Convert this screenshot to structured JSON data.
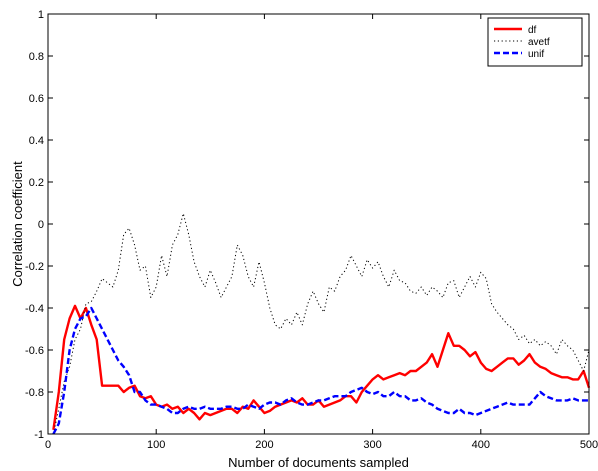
{
  "chart_data": {
    "type": "line",
    "xlabel": "Number of documents sampled",
    "ylabel": "Correlation coefficient",
    "xlim": [
      0,
      500
    ],
    "ylim": [
      -1,
      1
    ],
    "xticks": [
      0,
      100,
      200,
      300,
      400,
      500
    ],
    "yticks": [
      -1,
      -0.8,
      -0.6,
      -0.4,
      -0.2,
      0,
      0.2,
      0.4,
      0.6,
      0.8,
      1
    ],
    "grid": false,
    "legend_position": "top-right",
    "series": [
      {
        "name": "df",
        "color": "#ff0000",
        "style": "solid",
        "x": [
          5,
          10,
          15,
          20,
          25,
          30,
          35,
          40,
          45,
          50,
          55,
          60,
          65,
          70,
          75,
          80,
          85,
          90,
          95,
          100,
          105,
          110,
          115,
          120,
          125,
          130,
          135,
          140,
          145,
          150,
          155,
          160,
          165,
          170,
          175,
          180,
          185,
          190,
          195,
          200,
          205,
          210,
          215,
          220,
          225,
          230,
          235,
          240,
          245,
          250,
          255,
          260,
          265,
          270,
          275,
          280,
          285,
          290,
          295,
          300,
          305,
          310,
          315,
          320,
          325,
          330,
          335,
          340,
          345,
          350,
          355,
          360,
          365,
          370,
          375,
          380,
          385,
          390,
          395,
          400,
          405,
          410,
          415,
          420,
          425,
          430,
          435,
          440,
          445,
          450,
          455,
          460,
          465,
          470,
          475,
          480,
          485,
          490,
          495,
          500
        ],
        "y": [
          -0.98,
          -0.8,
          -0.55,
          -0.45,
          -0.39,
          -0.45,
          -0.4,
          -0.48,
          -0.55,
          -0.77,
          -0.77,
          -0.77,
          -0.77,
          -0.8,
          -0.78,
          -0.77,
          -0.82,
          -0.83,
          -0.82,
          -0.86,
          -0.87,
          -0.86,
          -0.88,
          -0.87,
          -0.9,
          -0.88,
          -0.9,
          -0.93,
          -0.9,
          -0.91,
          -0.9,
          -0.89,
          -0.88,
          -0.88,
          -0.9,
          -0.87,
          -0.88,
          -0.84,
          -0.87,
          -0.9,
          -0.89,
          -0.87,
          -0.86,
          -0.85,
          -0.84,
          -0.85,
          -0.83,
          -0.86,
          -0.86,
          -0.84,
          -0.87,
          -0.86,
          -0.85,
          -0.84,
          -0.82,
          -0.82,
          -0.85,
          -0.8,
          -0.77,
          -0.74,
          -0.72,
          -0.74,
          -0.73,
          -0.72,
          -0.71,
          -0.72,
          -0.7,
          -0.7,
          -0.68,
          -0.66,
          -0.62,
          -0.68,
          -0.6,
          -0.52,
          -0.58,
          -0.58,
          -0.6,
          -0.63,
          -0.61,
          -0.66,
          -0.69,
          -0.7,
          -0.68,
          -0.66,
          -0.64,
          -0.64,
          -0.67,
          -0.65,
          -0.62,
          -0.66,
          -0.68,
          -0.69,
          -0.71,
          -0.72,
          -0.73,
          -0.73,
          -0.74,
          -0.74,
          -0.7,
          -0.78
        ]
      },
      {
        "name": "avetf",
        "color": "#000000",
        "style": "dotted",
        "x": [
          5,
          10,
          15,
          20,
          25,
          30,
          35,
          40,
          45,
          50,
          55,
          60,
          65,
          70,
          75,
          80,
          85,
          90,
          95,
          100,
          105,
          110,
          115,
          120,
          125,
          130,
          135,
          140,
          145,
          150,
          155,
          160,
          165,
          170,
          175,
          180,
          185,
          190,
          195,
          200,
          205,
          210,
          215,
          220,
          225,
          230,
          235,
          240,
          245,
          250,
          255,
          260,
          265,
          270,
          275,
          280,
          285,
          290,
          295,
          300,
          305,
          310,
          315,
          320,
          325,
          330,
          335,
          340,
          345,
          350,
          355,
          360,
          365,
          370,
          375,
          380,
          385,
          390,
          395,
          400,
          405,
          410,
          415,
          420,
          425,
          430,
          435,
          440,
          445,
          450,
          455,
          460,
          465,
          470,
          475,
          480,
          485,
          490,
          495,
          500
        ],
        "y": [
          -1.0,
          -0.88,
          -0.75,
          -0.68,
          -0.55,
          -0.5,
          -0.38,
          -0.37,
          -0.32,
          -0.26,
          -0.28,
          -0.3,
          -0.22,
          -0.05,
          -0.02,
          -0.1,
          -0.22,
          -0.2,
          -0.35,
          -0.3,
          -0.15,
          -0.25,
          -0.1,
          -0.05,
          0.05,
          -0.05,
          -0.18,
          -0.25,
          -0.3,
          -0.22,
          -0.28,
          -0.35,
          -0.3,
          -0.25,
          -0.1,
          -0.15,
          -0.25,
          -0.3,
          -0.18,
          -0.28,
          -0.4,
          -0.48,
          -0.5,
          -0.45,
          -0.48,
          -0.42,
          -0.48,
          -0.38,
          -0.32,
          -0.38,
          -0.42,
          -0.3,
          -0.32,
          -0.25,
          -0.22,
          -0.15,
          -0.2,
          -0.25,
          -0.17,
          -0.21,
          -0.18,
          -0.25,
          -0.3,
          -0.22,
          -0.27,
          -0.28,
          -0.32,
          -0.33,
          -0.3,
          -0.34,
          -0.3,
          -0.32,
          -0.35,
          -0.28,
          -0.27,
          -0.35,
          -0.3,
          -0.25,
          -0.3,
          -0.23,
          -0.26,
          -0.38,
          -0.42,
          -0.45,
          -0.48,
          -0.5,
          -0.55,
          -0.53,
          -0.57,
          -0.55,
          -0.58,
          -0.56,
          -0.58,
          -0.62,
          -0.55,
          -0.58,
          -0.6,
          -0.65,
          -0.7,
          -0.6
        ]
      },
      {
        "name": "unif",
        "color": "#0000ff",
        "style": "dashed",
        "x": [
          5,
          10,
          15,
          20,
          25,
          30,
          35,
          40,
          45,
          50,
          55,
          60,
          65,
          70,
          75,
          80,
          85,
          90,
          95,
          100,
          105,
          110,
          115,
          120,
          125,
          130,
          135,
          140,
          145,
          150,
          155,
          160,
          165,
          170,
          175,
          180,
          185,
          190,
          195,
          200,
          205,
          210,
          215,
          220,
          225,
          230,
          235,
          240,
          245,
          250,
          255,
          260,
          265,
          270,
          275,
          280,
          285,
          290,
          295,
          300,
          305,
          310,
          315,
          320,
          325,
          330,
          335,
          340,
          345,
          350,
          355,
          360,
          365,
          370,
          375,
          380,
          385,
          390,
          395,
          400,
          405,
          410,
          415,
          420,
          425,
          430,
          435,
          440,
          445,
          450,
          455,
          460,
          465,
          470,
          475,
          480,
          485,
          490,
          495,
          500
        ],
        "y": [
          -1.0,
          -0.95,
          -0.8,
          -0.6,
          -0.5,
          -0.45,
          -0.44,
          -0.4,
          -0.45,
          -0.5,
          -0.55,
          -0.6,
          -0.65,
          -0.68,
          -0.72,
          -0.8,
          -0.8,
          -0.84,
          -0.86,
          -0.86,
          -0.87,
          -0.88,
          -0.9,
          -0.9,
          -0.88,
          -0.87,
          -0.88,
          -0.88,
          -0.87,
          -0.88,
          -0.88,
          -0.88,
          -0.87,
          -0.87,
          -0.88,
          -0.88,
          -0.86,
          -0.87,
          -0.88,
          -0.86,
          -0.85,
          -0.85,
          -0.86,
          -0.84,
          -0.83,
          -0.85,
          -0.86,
          -0.86,
          -0.85,
          -0.84,
          -0.84,
          -0.83,
          -0.82,
          -0.82,
          -0.82,
          -0.8,
          -0.79,
          -0.78,
          -0.8,
          -0.81,
          -0.8,
          -0.82,
          -0.82,
          -0.8,
          -0.82,
          -0.82,
          -0.84,
          -0.84,
          -0.83,
          -0.85,
          -0.86,
          -0.88,
          -0.89,
          -0.9,
          -0.9,
          -0.88,
          -0.9,
          -0.9,
          -0.91,
          -0.9,
          -0.89,
          -0.88,
          -0.87,
          -0.86,
          -0.85,
          -0.86,
          -0.86,
          -0.86,
          -0.86,
          -0.83,
          -0.8,
          -0.82,
          -0.83,
          -0.84,
          -0.84,
          -0.84,
          -0.83,
          -0.84,
          -0.84,
          -0.84
        ]
      }
    ]
  }
}
